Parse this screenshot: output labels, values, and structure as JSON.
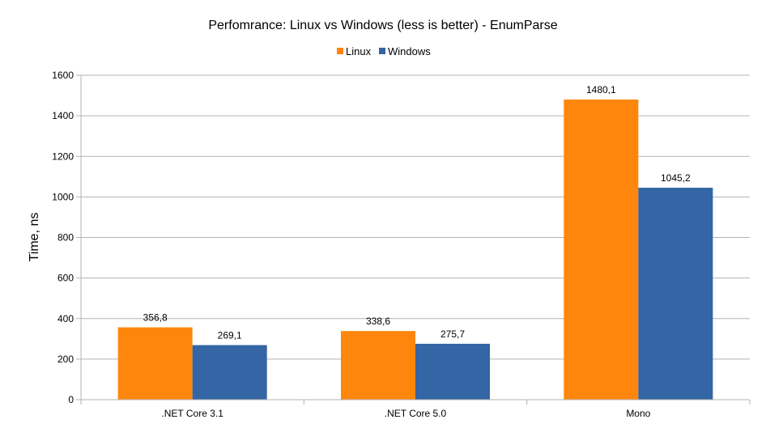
{
  "chart_data": {
    "type": "bar",
    "title": "Perfomrance: Linux vs Windows (less is better) - EnumParse",
    "xlabel": "",
    "ylabel": "Time, ns",
    "ylim": [
      0,
      1600
    ],
    "yticks": [
      0,
      200,
      400,
      600,
      800,
      1000,
      1200,
      1400,
      1600
    ],
    "grid": true,
    "legend_position": "top-center",
    "categories": [
      ".NET Core 3.1",
      ".NET Core 5.0",
      "Mono"
    ],
    "series": [
      {
        "name": "Linux",
        "color": "#ff860d",
        "values": [
          356.8,
          338.6,
          1480.1
        ],
        "labels": [
          "356,8",
          "338,6",
          "1480,1"
        ]
      },
      {
        "name": "Windows",
        "color": "#3465a4",
        "values": [
          269.1,
          275.7,
          1045.2
        ],
        "labels": [
          "269,1",
          "275,7",
          "1045,2"
        ]
      }
    ]
  }
}
